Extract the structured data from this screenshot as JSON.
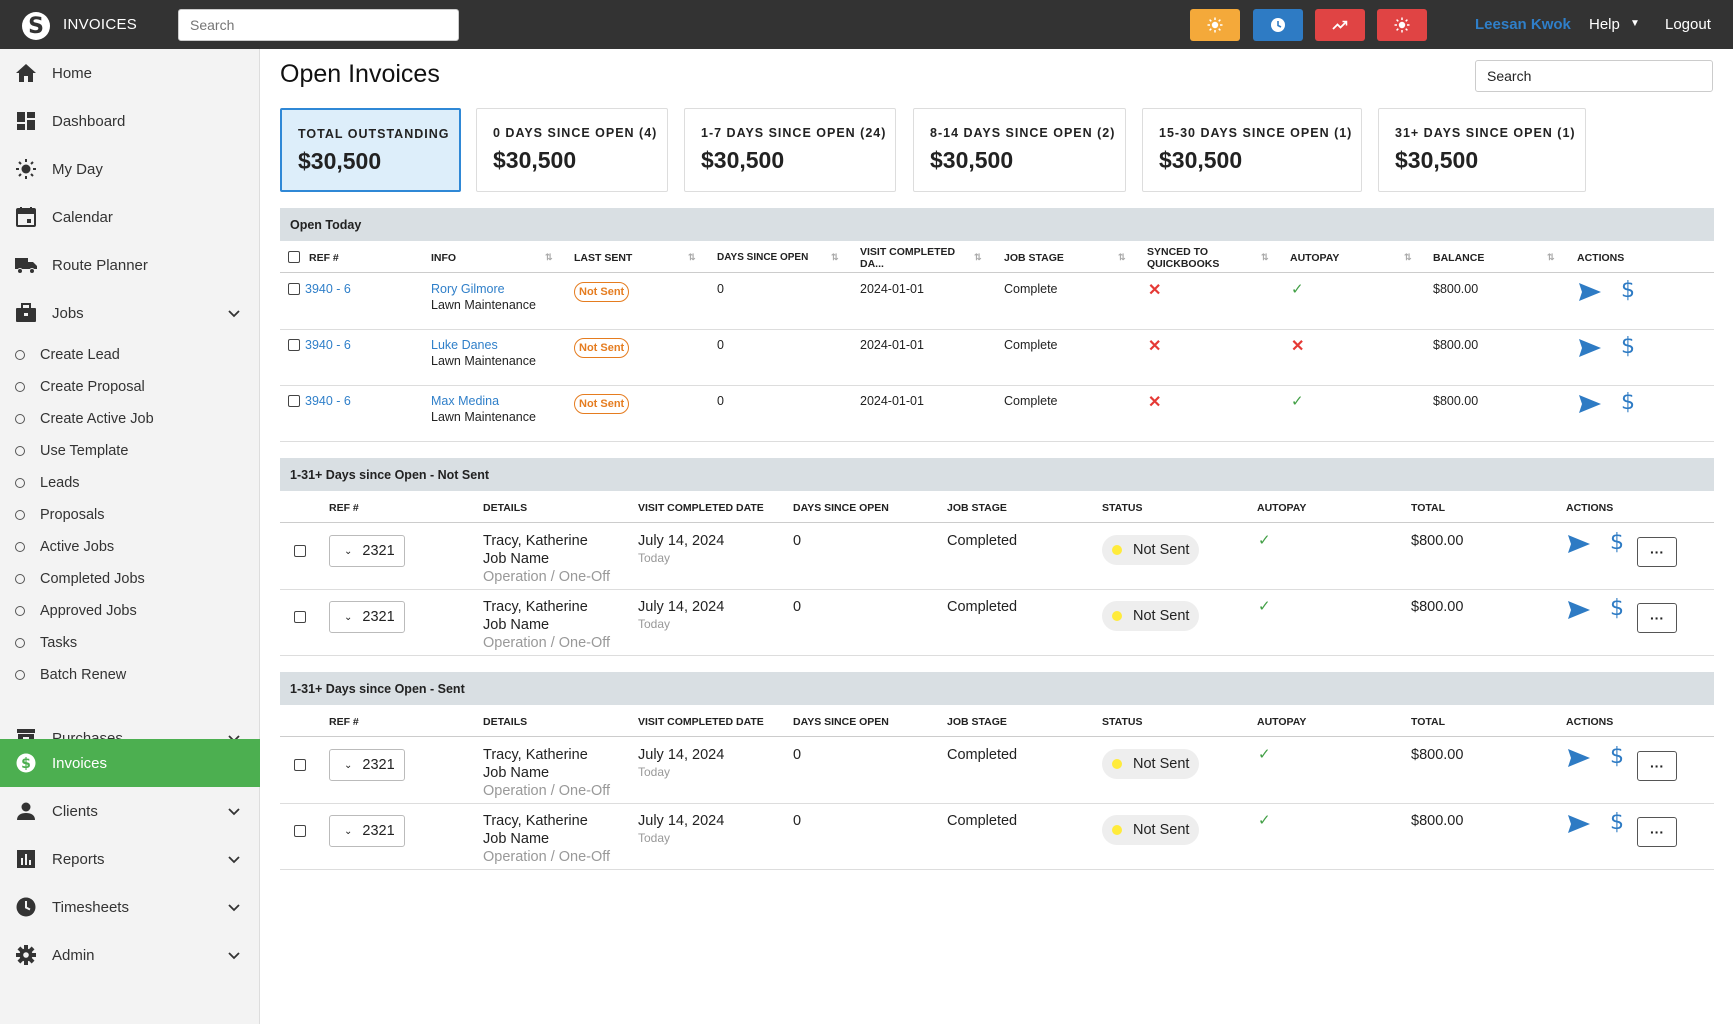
{
  "topbar": {
    "app_title": "INVOICES",
    "search_placeholder": "Search",
    "buttons": [
      {
        "name": "sun",
        "color": "#f4a93a"
      },
      {
        "name": "clock",
        "color": "#2e7bc4"
      },
      {
        "name": "trend",
        "color": "#e04444"
      },
      {
        "name": "alert",
        "color": "#e04444"
      }
    ],
    "user_name": "Leesan Kwok",
    "help_label": "Help",
    "logout_label": "Logout"
  },
  "sidebar": {
    "items": [
      {
        "label": "Home",
        "icon": "home-icon"
      },
      {
        "label": "Dashboard",
        "icon": "dashboard-icon"
      },
      {
        "label": "My Day",
        "icon": "sun-icon"
      },
      {
        "label": "Calendar",
        "icon": "calendar-icon"
      },
      {
        "label": "Route Planner",
        "icon": "truck-icon"
      },
      {
        "label": "Jobs",
        "icon": "briefcase-icon"
      }
    ],
    "sub_items": [
      "Create Lead",
      "Create Proposal",
      "Create Active Job",
      "Use Template",
      "Leads",
      "Proposals",
      "Active Jobs",
      "Completed Jobs",
      "Approved Jobs",
      "Tasks",
      "Batch Renew"
    ],
    "lower_items": [
      {
        "label": "Purchases",
        "icon": "inbox-icon"
      },
      {
        "label": "Invoices",
        "icon": "dollar-icon",
        "active": true
      },
      {
        "label": "Clients",
        "icon": "person-icon"
      },
      {
        "label": "Reports",
        "icon": "bar-chart-icon"
      },
      {
        "label": "Timesheets",
        "icon": "clock-icon"
      },
      {
        "label": "Admin",
        "icon": "gear-icon"
      }
    ],
    "accent": "#4caf50"
  },
  "main": {
    "title": "Open Invoices",
    "search_value": "Search",
    "cards": [
      {
        "label": "TOTAL OUTSTANDING",
        "value": "$30,500"
      },
      {
        "label": "0 DAYS SINCE OPEN (4)",
        "value": "$30,500"
      },
      {
        "label": "1-7 DAYS SINCE OPEN (24)",
        "value": "$30,500"
      },
      {
        "label": "8-14 DAYS SINCE OPEN (2)",
        "value": "$30,500"
      },
      {
        "label": "15-30 DAYS SINCE OPEN (1)",
        "value": "$30,500"
      },
      {
        "label": "31+ DAYS SINCE OPEN (1)",
        "value": "$30,500"
      }
    ],
    "open_today": {
      "title": "Open Today",
      "headers": [
        "REF #",
        "INFO",
        "LAST SENT",
        "DAYS SINCE OPEN",
        "VISIT COMPLETED DA...",
        "JOB STAGE",
        "SYNCED TO QUICKBOOKS",
        "AUTOPAY",
        "BALANCE",
        "ACTIONS"
      ],
      "rows": [
        {
          "ref": "3940 - 6",
          "name": "Rory Gilmore",
          "service": "Lawn Maintenance",
          "last_sent": "Not Sent",
          "days": "0",
          "visit": "2024-01-01",
          "stage": "Complete",
          "synced": "✕",
          "autopay": "✓",
          "balance": "$800.00"
        },
        {
          "ref": "3940 - 6",
          "name": "Luke Danes",
          "service": "Lawn Maintenance",
          "last_sent": "Not Sent",
          "days": "0",
          "visit": "2024-01-01",
          "stage": "Complete",
          "synced": "✕",
          "autopay": "✕",
          "balance": "$800.00"
        },
        {
          "ref": "3940 - 6",
          "name": "Max Medina",
          "service": "Lawn Maintenance",
          "last_sent": "Not Sent",
          "days": "0",
          "visit": "2024-01-01",
          "stage": "Complete",
          "synced": "✕",
          "autopay": "✓",
          "balance": "$800.00"
        }
      ]
    },
    "not_sent": {
      "title": "1-31+ Days since Open - Not Sent",
      "headers": [
        "REF #",
        "DETAILS",
        "VISIT COMPLETED DATE",
        "DAYS SINCE OPEN",
        "JOB STAGE",
        "STATUS",
        "AUTOPAY",
        "TOTAL",
        "ACTIONS"
      ],
      "rows": [
        {
          "ref": "2321",
          "client": "Tracy, Katherine",
          "job": "Job Name",
          "type": "Operation / One-Off",
          "date": "July 14, 2024",
          "rel": "Today",
          "days": "0",
          "stage": "Completed",
          "status": "Not Sent",
          "autopay": "✓",
          "total": "$800.00",
          "more": "···"
        },
        {
          "ref": "2321",
          "client": "Tracy, Katherine",
          "job": "Job Name",
          "type": "Operation / One-Off",
          "date": "July 14, 2024",
          "rel": "Today",
          "days": "0",
          "stage": "Completed",
          "status": "Not Sent",
          "autopay": "✓",
          "total": "$800.00",
          "more": "···"
        }
      ]
    },
    "sent": {
      "title": "1-31+ Days since Open - Sent",
      "headers": [
        "REF #",
        "DETAILS",
        "VISIT COMPLETED DATE",
        "DAYS SINCE OPEN",
        "JOB STAGE",
        "STATUS",
        "AUTOPAY",
        "TOTAL",
        "ACTIONS"
      ],
      "rows": [
        {
          "ref": "2321",
          "client": "Tracy, Katherine",
          "job": "Job Name",
          "type": "Operation / One-Off",
          "date": "July 14, 2024",
          "rel": "Today",
          "days": "0",
          "stage": "Completed",
          "status": "Not Sent",
          "autopay": "✓",
          "total": "$800.00",
          "more": "···"
        },
        {
          "ref": "2321",
          "client": "Tracy, Katherine",
          "job": "Job Name",
          "type": "Operation / One-Off",
          "date": "July 14, 2024",
          "rel": "Today",
          "days": "0",
          "stage": "Completed",
          "status": "Not Sent",
          "autopay": "✓",
          "total": "$800.00",
          "more": "···"
        }
      ]
    }
  }
}
